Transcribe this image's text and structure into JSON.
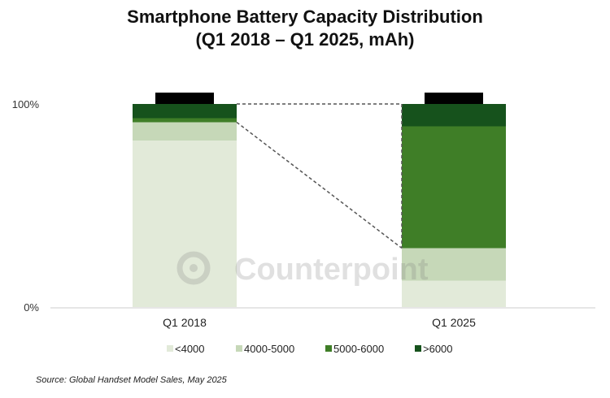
{
  "chart_data": {
    "type": "bar",
    "stacked": true,
    "title": "Smartphone Battery Capacity Distribution",
    "subtitle": "(Q1 2018 – Q1 2025, mAh)",
    "categories": [
      "Q1 2018",
      "Q1 2025"
    ],
    "series": [
      {
        "name": "<4000",
        "color": "#e2ead9",
        "values": [
          82,
          13
        ]
      },
      {
        "name": "4000-5000",
        "color": "#c6d8b8",
        "values": [
          9,
          16
        ]
      },
      {
        "name": "5000-6000",
        "color": "#3f7e27",
        "values": [
          2,
          60
        ]
      },
      {
        "name": ">6000",
        "color": "#16521c",
        "values": [
          7,
          11
        ]
      }
    ],
    "ylim": [
      0,
      100
    ],
    "yticks": [
      "0%",
      "100%"
    ],
    "grid": false,
    "legend": "bottom",
    "source": "Source: Global Handset Model Sales, May 2025",
    "watermark": "Counterpoint"
  }
}
